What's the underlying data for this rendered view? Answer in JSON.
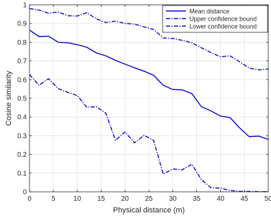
{
  "chart_data": {
    "type": "line",
    "xlabel": "Physical distance (m)",
    "ylabel": "Cosine similarity",
    "xlim": [
      0,
      50
    ],
    "ylim": [
      0,
      1
    ],
    "xticks": [
      0,
      5,
      10,
      15,
      20,
      25,
      30,
      35,
      40,
      45,
      50
    ],
    "yticks": [
      0,
      0.1,
      0.2,
      0.3,
      0.4,
      0.5,
      0.6,
      0.7,
      0.8,
      0.9,
      1
    ],
    "xtick_labels": [
      "0",
      "5",
      "10",
      "15",
      "20",
      "25",
      "30",
      "35",
      "40",
      "45",
      "50"
    ],
    "ytick_labels": [
      "0",
      "0.1",
      "0.2",
      "0.3",
      "0.4",
      "0.5",
      "0.6",
      "0.7",
      "0.8",
      "0.9",
      "1"
    ],
    "grid": true,
    "legend_position": "top-right",
    "x": [
      0,
      2,
      4,
      6,
      8,
      10,
      12,
      14,
      16,
      18,
      20,
      22,
      24,
      26,
      28,
      30,
      32,
      34,
      36,
      38,
      40,
      42,
      44,
      46,
      48,
      50
    ],
    "series": [
      {
        "name": "Mean distance",
        "style": "solid",
        "color": "#0000cc",
        "values": [
          0.865,
          0.83,
          0.832,
          0.8,
          0.797,
          0.787,
          0.773,
          0.743,
          0.727,
          0.703,
          0.683,
          0.663,
          0.645,
          0.623,
          0.57,
          0.547,
          0.545,
          0.525,
          0.455,
          0.433,
          0.405,
          0.397,
          0.342,
          0.295,
          0.298,
          0.28
        ]
      },
      {
        "name": "Upper confidence bound",
        "style": "dashdot",
        "color": "#0000cc",
        "values": [
          0.98,
          0.972,
          0.955,
          0.962,
          0.942,
          0.94,
          0.958,
          0.925,
          0.905,
          0.913,
          0.9,
          0.897,
          0.882,
          0.868,
          0.823,
          0.82,
          0.81,
          0.797,
          0.77,
          0.745,
          0.722,
          0.727,
          0.695,
          0.662,
          0.652,
          0.657
        ]
      },
      {
        "name": "Lower confidence bound",
        "style": "dashdot",
        "color": "#0000cc",
        "values": [
          0.627,
          0.57,
          0.605,
          0.552,
          0.532,
          0.515,
          0.452,
          0.455,
          0.42,
          0.275,
          0.32,
          0.262,
          0.302,
          0.275,
          0.095,
          0.122,
          0.118,
          0.147,
          0.065,
          0.022,
          0.02,
          0.007,
          0.003,
          0.002,
          0.001,
          0.001
        ]
      }
    ]
  }
}
